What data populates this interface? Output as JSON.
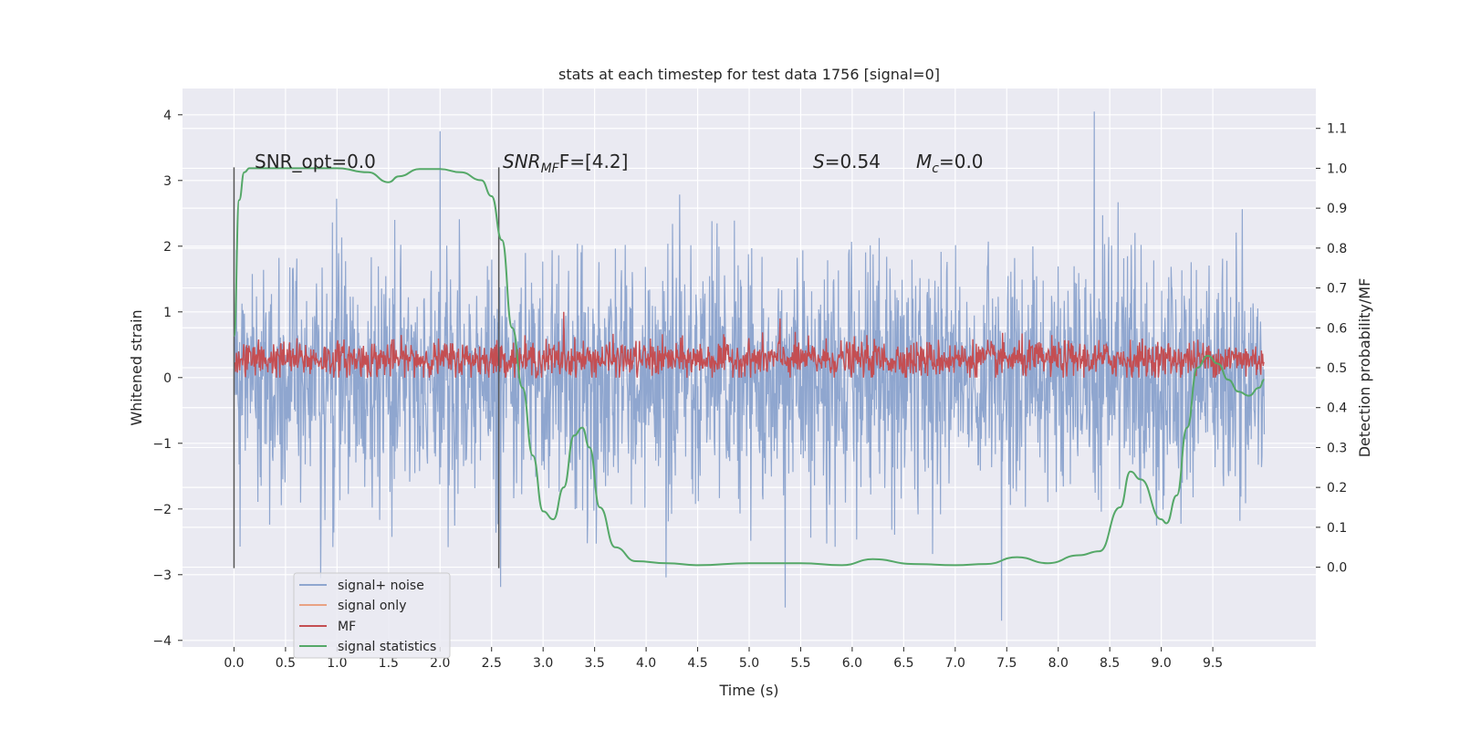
{
  "chart_data": {
    "type": "line",
    "title": "stats at each timestep for test data 1756 [signal=0]",
    "xlabel": "Time (s)",
    "ylabel": "Whitened strain",
    "y2label": "Detection probability/MF",
    "xlim": [
      -0.5,
      10.5
    ],
    "ylim": [
      -4.1,
      4.4
    ],
    "y2lim": [
      -0.2,
      1.2
    ],
    "x_ticks": [
      0.0,
      0.5,
      1.0,
      1.5,
      2.0,
      2.5,
      3.0,
      3.5,
      4.0,
      4.5,
      5.0,
      5.5,
      6.0,
      6.5,
      7.0,
      7.5,
      8.0,
      8.5,
      9.0,
      9.5
    ],
    "x_tick_labels": [
      "0.0",
      "0.5",
      "1.0",
      "1.5",
      "2.0",
      "2.5",
      "3.0",
      "3.5",
      "4.0",
      "4.5",
      "5.0",
      "5.5",
      "6.0",
      "6.5",
      "7.0",
      "7.5",
      "8.0",
      "8.5",
      "9.0",
      "9.5"
    ],
    "y_ticks": [
      4,
      3,
      2,
      1,
      0,
      -1,
      -2,
      -3,
      -4
    ],
    "y_tick_labels": [
      "4",
      "3",
      "2",
      "1",
      "0",
      "−1",
      "−2",
      "−3",
      "−4"
    ],
    "y2_ticks": [
      1.1,
      1.0,
      0.9,
      0.8,
      0.7,
      0.6,
      0.5,
      0.4,
      0.3,
      0.2,
      0.1,
      0.0
    ],
    "y2_tick_labels": [
      "1.1",
      "1.0",
      "0.9",
      "0.8",
      "0.7",
      "0.6",
      "0.5",
      "0.4",
      "0.3",
      "0.2",
      "0.1",
      "0.0"
    ],
    "grid": true,
    "legend_position": "bottom-left",
    "legend": [
      {
        "label": "signal+ noise",
        "color": "#8fa6cf"
      },
      {
        "label": "signal only",
        "color": "#e9a283"
      },
      {
        "label": "MF",
        "color": "#c44e52"
      },
      {
        "label": "signal statistics",
        "color": "#55a868"
      }
    ],
    "annotations": [
      {
        "text": "SNR_opt=0.0"
      },
      {
        "text_main": "SNR",
        "text_sub": "MF",
        "text_rest": "F=[4.2]"
      },
      {
        "text_main": "S",
        "text_rest": "=0.54"
      },
      {
        "text_main": "M",
        "text_sub": "c",
        "text_rest": "=0.0"
      }
    ],
    "vertical_markers": [
      0.0,
      2.57
    ],
    "series": [
      {
        "name": "signal+ noise",
        "axis": "left",
        "color": "#8fa6cf",
        "x_range": [
          0.0,
          10.0
        ],
        "typical_range": [
          -3.0,
          3.5
        ],
        "notable_peaks": [
          [
            2.0,
            3.75
          ],
          [
            8.35,
            4.05
          ],
          [
            7.45,
            -3.7
          ],
          [
            5.35,
            -3.5
          ]
        ]
      },
      {
        "name": "MF",
        "axis": "left",
        "color": "#c44e52",
        "x_range": [
          0.0,
          10.0
        ],
        "typical_range": [
          0.0,
          0.6
        ],
        "notable_peaks": [
          [
            3.2,
            1.0
          ],
          [
            5.3,
            0.9
          ]
        ]
      },
      {
        "name": "signal statistics",
        "axis": "right",
        "color": "#55a868",
        "x": [
          0.0,
          0.05,
          0.1,
          0.15,
          0.2,
          0.3,
          0.5,
          1.0,
          1.3,
          1.5,
          1.6,
          1.8,
          2.0,
          2.2,
          2.4,
          2.5,
          2.6,
          2.7,
          2.8,
          2.9,
          3.0,
          3.1,
          3.2,
          3.3,
          3.38,
          3.45,
          3.55,
          3.7,
          3.9,
          4.2,
          4.5,
          5.0,
          5.5,
          5.9,
          6.2,
          6.6,
          7.0,
          7.3,
          7.6,
          7.9,
          8.2,
          8.4,
          8.6,
          8.7,
          8.8,
          9.0,
          9.05,
          9.15,
          9.25,
          9.35,
          9.45,
          9.55,
          9.65,
          9.75,
          9.85,
          9.95,
          10.0
        ],
        "y": [
          0.58,
          0.92,
          0.99,
          1.0,
          1.0,
          1.0,
          1.0,
          1.0,
          0.99,
          0.965,
          0.98,
          0.998,
          0.998,
          0.99,
          0.97,
          0.93,
          0.82,
          0.6,
          0.45,
          0.28,
          0.14,
          0.12,
          0.2,
          0.33,
          0.35,
          0.3,
          0.15,
          0.05,
          0.015,
          0.01,
          0.005,
          0.01,
          0.01,
          0.005,
          0.02,
          0.008,
          0.005,
          0.008,
          0.025,
          0.01,
          0.03,
          0.04,
          0.15,
          0.24,
          0.22,
          0.12,
          0.11,
          0.18,
          0.35,
          0.5,
          0.53,
          0.51,
          0.47,
          0.44,
          0.43,
          0.45,
          0.47
        ]
      },
      {
        "name": "signal only",
        "axis": "left",
        "color": "#e9a283",
        "values": []
      }
    ]
  }
}
